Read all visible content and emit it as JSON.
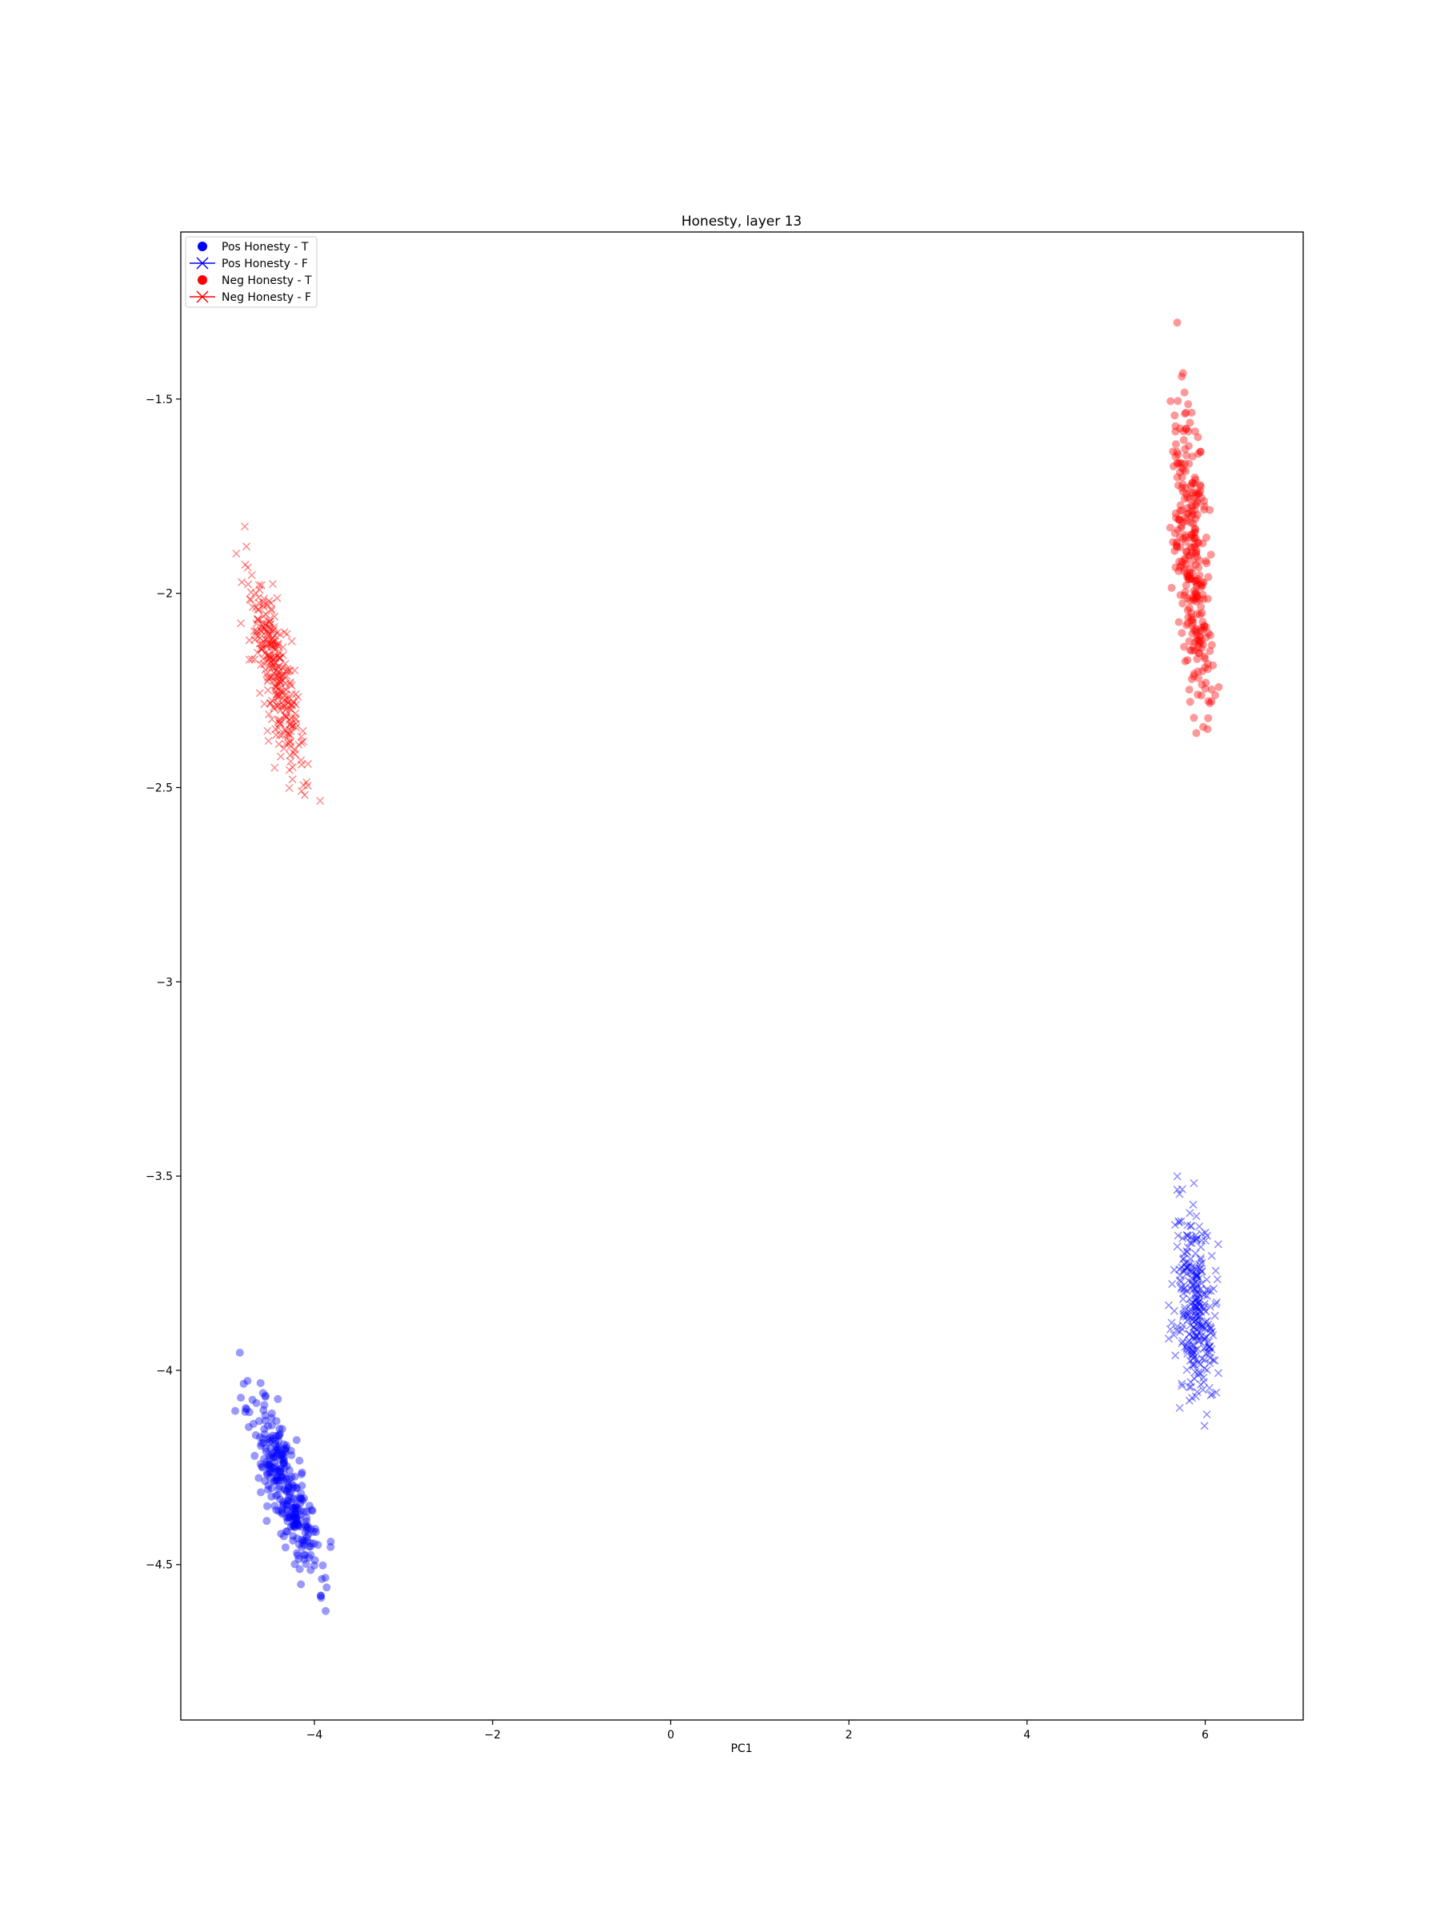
{
  "chart_data": {
    "type": "scatter",
    "title": "Honesty, layer 13",
    "xlabel": "PC1",
    "ylabel": "",
    "xlim": [
      -5.5,
      7.1
    ],
    "ylim": [
      -4.9,
      -1.07
    ],
    "xticks": [
      -4,
      -2,
      0,
      2,
      4,
      6
    ],
    "yticks": [
      -4.5,
      -4.0,
      -3.5,
      -3.0,
      -2.5,
      -2.0,
      -1.5
    ],
    "grid": false,
    "legend_position": "top-left",
    "legend": [
      {
        "label": "Pos Honesty - T",
        "color": "#0000ff",
        "marker": "circle"
      },
      {
        "label": "Pos Honesty - F",
        "color": "#0000ff",
        "marker": "x"
      },
      {
        "label": "Neg Honesty - T",
        "color": "#ff0000",
        "marker": "circle"
      },
      {
        "label": "Neg Honesty - F",
        "color": "#ff0000",
        "marker": "x"
      }
    ],
    "clusters": [
      {
        "series": "Pos Honesty - T",
        "color": "#0000ff",
        "marker": "circle",
        "n": 300,
        "seed": 11,
        "center": [
          -4.32,
          -4.3
        ],
        "major_sd": 0.22,
        "minor_sd": 0.06,
        "slope_dy_dx": -0.55
      },
      {
        "series": "Pos Honesty - F",
        "color": "#0000ff",
        "marker": "x",
        "n": 300,
        "seed": 23,
        "center": [
          5.88,
          -3.83
        ],
        "major_sd": 0.13,
        "minor_sd": 0.1,
        "slope_dy_dx": -1.8
      },
      {
        "series": "Neg Honesty - T",
        "color": "#ff0000",
        "marker": "circle",
        "n": 300,
        "seed": 37,
        "center": [
          5.86,
          -1.9
        ],
        "major_sd": 0.2,
        "minor_sd": 0.09,
        "slope_dy_dx": -2.8
      },
      {
        "series": "Neg Honesty - F",
        "color": "#ff0000",
        "marker": "x",
        "n": 300,
        "seed": 53,
        "center": [
          -4.42,
          -2.22
        ],
        "major_sd": 0.21,
        "minor_sd": 0.065,
        "slope_dy_dx": -0.8
      }
    ]
  }
}
